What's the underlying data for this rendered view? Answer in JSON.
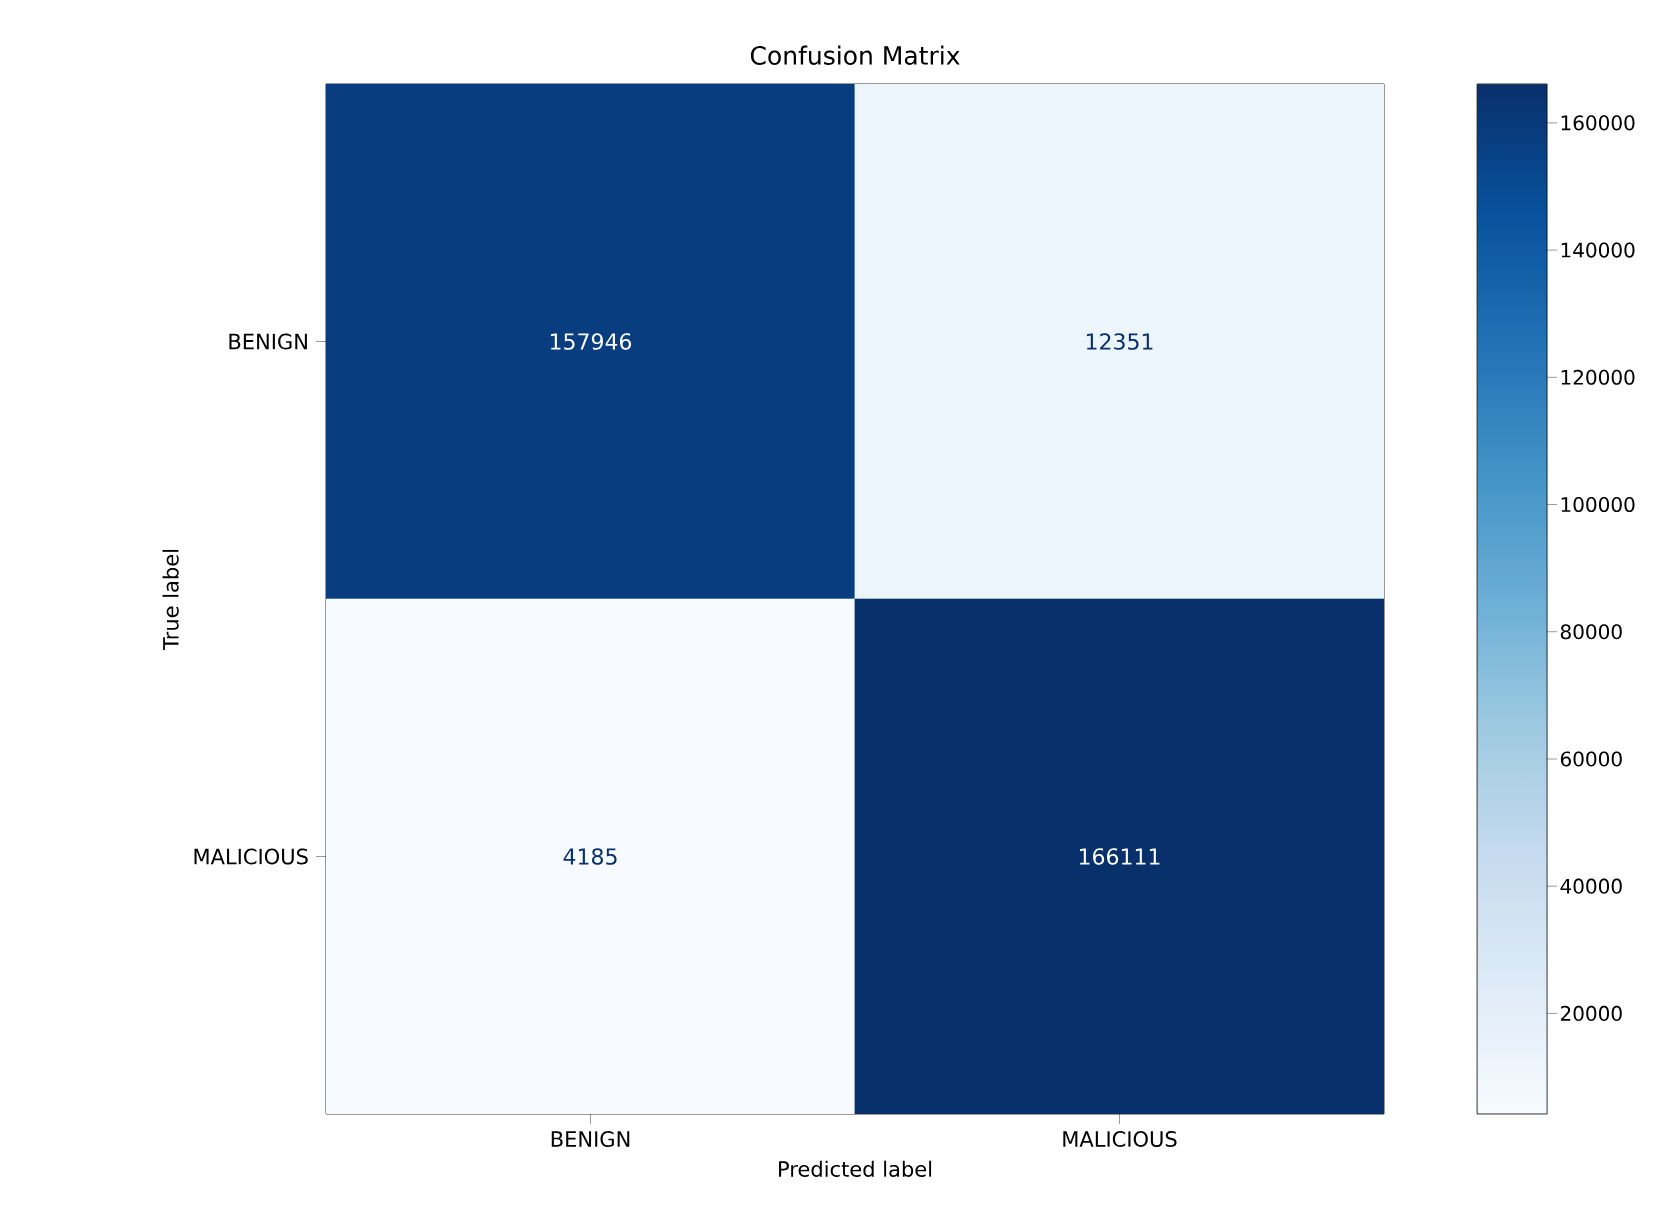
{
  "chart_data": {
    "type": "heatmap",
    "title": "Confusion Matrix",
    "xlabel": "Predicted label",
    "ylabel": "True label",
    "categories": [
      "BENIGN",
      "MALICIOUS"
    ],
    "y_categories": [
      "BENIGN",
      "MALICIOUS"
    ],
    "cells": [
      [
        157946,
        12351
      ],
      [
        4185,
        166111
      ]
    ],
    "clim": [
      4185,
      166111
    ],
    "cticks": [
      20000,
      40000,
      60000,
      80000,
      100000,
      120000,
      140000,
      160000
    ],
    "data_labels": true
  }
}
